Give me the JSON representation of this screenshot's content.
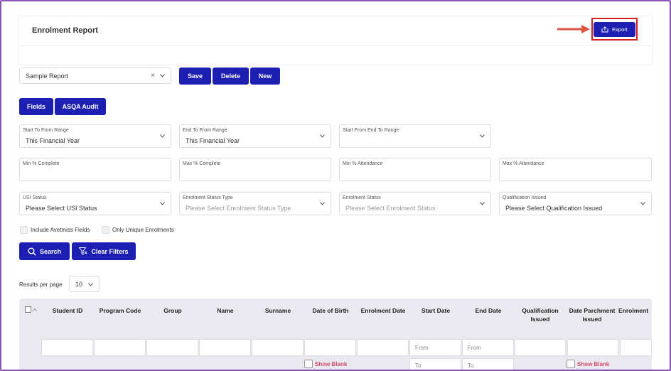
{
  "header": {
    "title": "Enrolment Report",
    "export_label": "Export"
  },
  "report": {
    "selected": "Sample Report",
    "save_label": "Save",
    "delete_label": "Delete",
    "new_label": "New"
  },
  "tabs": {
    "fields_label": "Fields",
    "asqa_label": "ASQA Audit"
  },
  "filters": {
    "start_to_from_label": "Start To From Range",
    "start_to_from_value": "This Financial Year",
    "end_to_from_label": "End To From Range",
    "end_to_from_value": "This Financial Year",
    "start_from_end_to_label": "Start From End To Range",
    "min_complete_label": "Min % Complete",
    "max_complete_label": "Max % Complete",
    "min_attendance_label": "Min % Attendance",
    "max_attendance_label": "Max % Attendance",
    "usi_label": "USI Status",
    "usi_value": "Please Select USI Status",
    "enrol_type_label": "Enrolment Status Type",
    "enrol_type_placeholder": "Please Select Enrolment Status Type",
    "enrol_status_label": "Enrolment Status",
    "enrol_status_placeholder": "Please Select Enrolment Status",
    "qual_label": "Qualification Issued",
    "qual_value": "Please Select Qualification Issued"
  },
  "options": {
    "avetmiss_label": "Include Avetmiss Fields",
    "unique_label": "Only Unique Enrolments"
  },
  "actions": {
    "search_label": "Search",
    "clear_label": "Clear Filters"
  },
  "pagination": {
    "results_label": "Results per page",
    "per_page": "10"
  },
  "table": {
    "columns": [
      "Student ID",
      "Program Code",
      "Group",
      "Name",
      "Surname",
      "Date of Birth",
      "Enrolment Date",
      "Start Date",
      "End Date",
      "Qualification Issued",
      "Date Parchment Issued",
      "Enrolment"
    ],
    "from_placeholder": "From",
    "to_placeholder": "To",
    "show_blank_label": "Show Blank"
  },
  "colors": {
    "primary": "#1d1fb3",
    "highlight": "#d42020",
    "frame": "#8b55b7"
  }
}
